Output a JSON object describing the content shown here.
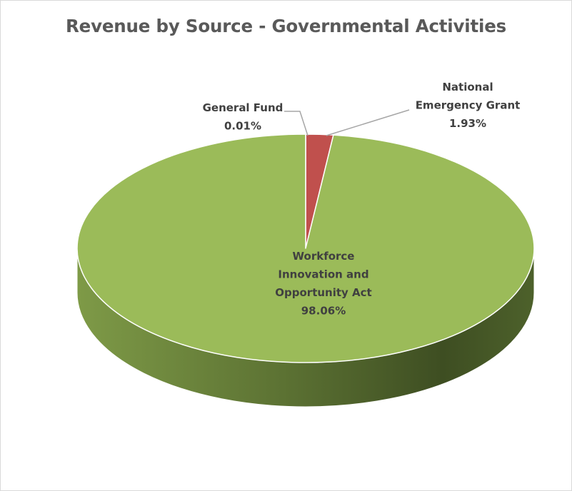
{
  "chart_data": {
    "type": "pie",
    "title": "Revenue by Source - Governmental Activities",
    "style": "3d",
    "slices": [
      {
        "label": "General Fund",
        "label_lines": [
          "General Fund"
        ],
        "value": 0.01,
        "display": "0.01%",
        "color": "#9bbb59"
      },
      {
        "label": "National Emergency Grant",
        "label_lines": [
          "National",
          "Emergency Grant"
        ],
        "value": 1.93,
        "display": "1.93%",
        "color": "#c0504d"
      },
      {
        "label": "Workforce Innovation and Opportunity Act",
        "label_lines": [
          "Workforce",
          "Innovation and",
          "Opportunity Act"
        ],
        "value": 98.06,
        "display": "98.06%",
        "color": "#9bbb59"
      }
    ]
  }
}
